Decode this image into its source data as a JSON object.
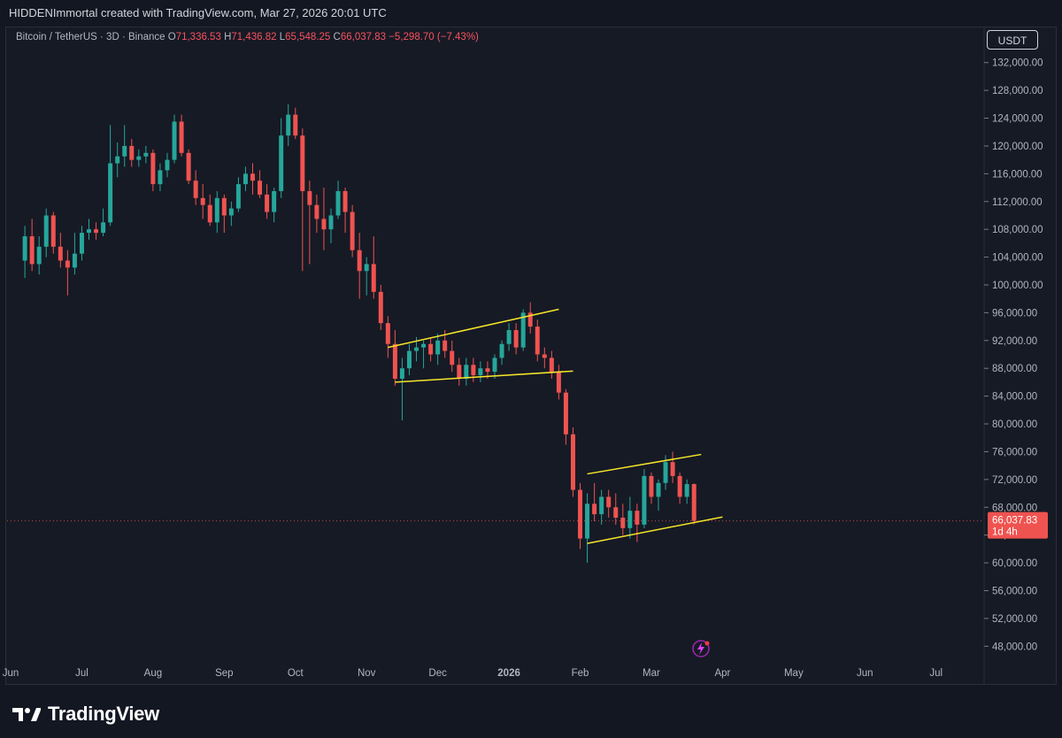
{
  "header": {
    "attribution": "HIDDENImmortal created with TradingView.com, Mar 27, 2026 20:01 UTC"
  },
  "legend": {
    "symbol": "Bitcoin / TetherUS · 3D · Binance",
    "o_label": "O",
    "o_value": "71,336.53",
    "h_label": "H",
    "h_value": "71,436.82",
    "l_label": "L",
    "l_value": "65,548.25",
    "c_label": "C",
    "c_value": "66,037.83",
    "change": "−5,298.70 (−7.43%)"
  },
  "toolbar": {
    "currency": "USDT"
  },
  "price_tag": {
    "price": "66,037.83",
    "countdown": "1d 4h"
  },
  "branding": {
    "name": "TradingView"
  },
  "colors": {
    "up": "#26a69a",
    "down": "#ef5350",
    "trendline": "#f5e52a",
    "background": "#161a25",
    "text": "#b2b5be"
  },
  "icons": {
    "flash": "lightning-icon",
    "logo": "tradingview-logo-icon"
  },
  "chart_data": {
    "type": "candlestick",
    "title": "Bitcoin / TetherUS · 3D · Binance",
    "interval": "3D",
    "ylim": [
      46000,
      134000
    ],
    "y_ticks": [
      48000,
      52000,
      56000,
      60000,
      64000,
      68000,
      72000,
      76000,
      80000,
      84000,
      88000,
      92000,
      96000,
      100000,
      104000,
      108000,
      112000,
      116000,
      120000,
      124000,
      128000,
      132000
    ],
    "y_tick_labels": [
      "48,000.00",
      "52,000.00",
      "56,000.00",
      "60,000.00",
      "64,000.00",
      "68,000.00",
      "72,000.00",
      "76,000.00",
      "80,000.00",
      "84,000.00",
      "88,000.00",
      "92,000.00",
      "96,000.00",
      "100,000.00",
      "104,000.00",
      "108,000.00",
      "112,000.00",
      "116,000.00",
      "120,000.00",
      "124,000.00",
      "128,000.00",
      "132,000.00"
    ],
    "x_labels": [
      "Jun",
      "Jul",
      "Aug",
      "Sep",
      "Oct",
      "Nov",
      "Dec",
      "2026",
      "Feb",
      "Mar",
      "Apr",
      "May",
      "Jun",
      "Jul"
    ],
    "x_label_index": [
      0,
      10,
      20,
      30,
      40,
      50,
      60,
      70,
      80,
      90,
      100,
      110,
      120,
      130
    ],
    "x_range": [
      0,
      137
    ],
    "last_price": 66037.83,
    "candles": [
      [
        2,
        103500,
        108500,
        101000,
        107000
      ],
      [
        3,
        107000,
        109500,
        102000,
        103000
      ],
      [
        4,
        103000,
        107000,
        101500,
        105500
      ],
      [
        5,
        105500,
        111000,
        104000,
        110000
      ],
      [
        6,
        110000,
        110500,
        104500,
        105500
      ],
      [
        7,
        105500,
        107500,
        102500,
        103500
      ],
      [
        8,
        103500,
        105000,
        98500,
        102500
      ],
      [
        9,
        102500,
        107500,
        101500,
        104500
      ],
      [
        10,
        104500,
        108500,
        103500,
        107500
      ],
      [
        11,
        107500,
        109500,
        106500,
        108000
      ],
      [
        12,
        108000,
        109000,
        106500,
        107500
      ],
      [
        13,
        107500,
        111000,
        107000,
        109000
      ],
      [
        14,
        109000,
        123000,
        108500,
        117500
      ],
      [
        15,
        117500,
        120500,
        115500,
        118500
      ],
      [
        16,
        118500,
        123000,
        117000,
        120000
      ],
      [
        17,
        120000,
        121000,
        117000,
        118000
      ],
      [
        18,
        118000,
        119500,
        117000,
        118500
      ],
      [
        19,
        118500,
        120000,
        117500,
        119000
      ],
      [
        20,
        119000,
        119500,
        113500,
        114500
      ],
      [
        21,
        114500,
        117500,
        113500,
        116500
      ],
      [
        22,
        116500,
        119000,
        115500,
        118000
      ],
      [
        23,
        118000,
        124500,
        117500,
        123500
      ],
      [
        24,
        123500,
        124500,
        118500,
        119000
      ],
      [
        25,
        119000,
        119500,
        114500,
        115000
      ],
      [
        26,
        115000,
        116500,
        111500,
        112500
      ],
      [
        27,
        112500,
        114500,
        109500,
        111500
      ],
      [
        28,
        111500,
        113000,
        108500,
        109000
      ],
      [
        29,
        109000,
        113500,
        107500,
        112500
      ],
      [
        30,
        112500,
        113000,
        107500,
        110000
      ],
      [
        31,
        110000,
        112000,
        108500,
        111000
      ],
      [
        32,
        111000,
        115500,
        110500,
        114500
      ],
      [
        33,
        114500,
        117000,
        113500,
        116000
      ],
      [
        34,
        116000,
        117500,
        113000,
        115000
      ],
      [
        35,
        115000,
        116500,
        112500,
        113000
      ],
      [
        36,
        113000,
        114500,
        109500,
        110500
      ],
      [
        37,
        110500,
        114000,
        109000,
        113500
      ],
      [
        38,
        113500,
        124000,
        112500,
        121500
      ],
      [
        39,
        121500,
        126000,
        120000,
        124500
      ],
      [
        40,
        124500,
        125500,
        121000,
        121500
      ],
      [
        41,
        121500,
        122500,
        102000,
        113500
      ],
      [
        42,
        113500,
        115000,
        103000,
        111500
      ],
      [
        43,
        111500,
        113000,
        107500,
        109500
      ],
      [
        44,
        109500,
        114000,
        105000,
        108000
      ],
      [
        45,
        108000,
        111000,
        106000,
        110000
      ],
      [
        46,
        110000,
        115000,
        109500,
        113500
      ],
      [
        47,
        113500,
        114000,
        107500,
        110500
      ],
      [
        48,
        110500,
        111500,
        104000,
        105000
      ],
      [
        49,
        105000,
        107500,
        98000,
        102000
      ],
      [
        50,
        102000,
        104000,
        98500,
        103000
      ],
      [
        51,
        103000,
        107000,
        98000,
        99000
      ],
      [
        52,
        99000,
        100000,
        93500,
        94500
      ],
      [
        53,
        94500,
        95500,
        89500,
        91500
      ],
      [
        54,
        91500,
        93500,
        85500,
        86500
      ],
      [
        55,
        86500,
        89500,
        80500,
        88000
      ],
      [
        56,
        88000,
        91500,
        87000,
        90500
      ],
      [
        57,
        90500,
        92500,
        89000,
        91000
      ],
      [
        58,
        91000,
        92000,
        88000,
        91500
      ],
      [
        59,
        91500,
        92500,
        89000,
        90000
      ],
      [
        60,
        90000,
        93000,
        88500,
        92000
      ],
      [
        61,
        92000,
        93500,
        89500,
        90500
      ],
      [
        62,
        90500,
        92000,
        87500,
        88500
      ],
      [
        63,
        88500,
        89500,
        85500,
        86500
      ],
      [
        64,
        86500,
        89500,
        85500,
        88500
      ],
      [
        65,
        88500,
        89500,
        86000,
        87000
      ],
      [
        66,
        87000,
        89000,
        86000,
        88000
      ],
      [
        67,
        88000,
        89000,
        86500,
        87500
      ],
      [
        68,
        87500,
        90000,
        86500,
        89500
      ],
      [
        69,
        89500,
        92000,
        88500,
        91500
      ],
      [
        70,
        91500,
        94500,
        90500,
        93500
      ],
      [
        71,
        93500,
        94500,
        90000,
        91000
      ],
      [
        72,
        91000,
        96500,
        90500,
        96000
      ],
      [
        73,
        96000,
        97500,
        93000,
        94000
      ],
      [
        74,
        94000,
        95000,
        89000,
        90000
      ],
      [
        75,
        90000,
        91000,
        88000,
        89500
      ],
      [
        76,
        89500,
        90500,
        86500,
        87500
      ],
      [
        77,
        87500,
        88500,
        83500,
        84500
      ],
      [
        78,
        84500,
        85000,
        77000,
        78500
      ],
      [
        79,
        78500,
        79500,
        69500,
        70500
      ],
      [
        80,
        70500,
        71500,
        62000,
        63500
      ],
      [
        81,
        63500,
        70000,
        60000,
        68500
      ],
      [
        82,
        68500,
        71500,
        66000,
        67000
      ],
      [
        83,
        67000,
        70500,
        65500,
        69500
      ],
      [
        84,
        69500,
        70500,
        66500,
        68000
      ],
      [
        85,
        68000,
        70000,
        65500,
        66500
      ],
      [
        86,
        66500,
        68500,
        64000,
        65000
      ],
      [
        87,
        65000,
        69500,
        63500,
        67500
      ],
      [
        88,
        67500,
        68500,
        63000,
        65500
      ],
      [
        89,
        65500,
        73500,
        65000,
        72500
      ],
      [
        90,
        72500,
        73000,
        68500,
        69500
      ],
      [
        91,
        69500,
        72000,
        67500,
        71500
      ],
      [
        92,
        71500,
        75500,
        70500,
        74500
      ],
      [
        93,
        74500,
        76000,
        71500,
        72500
      ],
      [
        94,
        72500,
        73000,
        68500,
        69500
      ],
      [
        95,
        69500,
        72000,
        68500,
        71336.53
      ],
      [
        96,
        71336.53,
        71436.82,
        65548.25,
        66037.83
      ]
    ],
    "trendlines": [
      [
        [
          53,
          91000
        ],
        [
          77,
          96500
        ]
      ],
      [
        [
          54,
          86000
        ],
        [
          79,
          87600
        ]
      ],
      [
        [
          81,
          72800
        ],
        [
          97,
          75600
        ]
      ],
      [
        [
          81,
          62800
        ],
        [
          100,
          66600
        ]
      ]
    ]
  }
}
